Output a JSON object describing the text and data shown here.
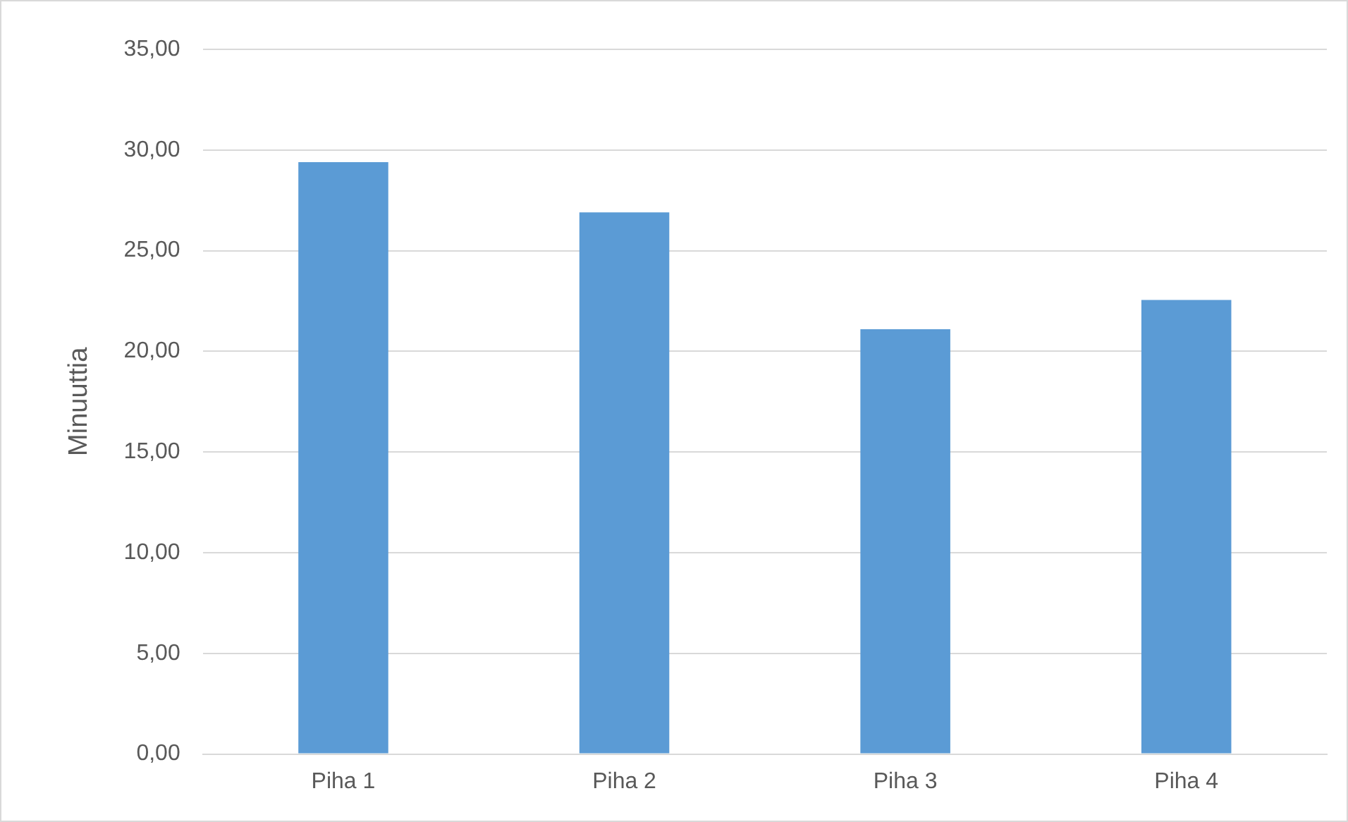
{
  "chart_data": {
    "type": "bar",
    "ylabel": "Minuuttia",
    "categories": [
      "Piha 1",
      "Piha 2",
      "Piha 3",
      "Piha 4"
    ],
    "values": [
      29.4,
      26.9,
      21.1,
      22.55
    ],
    "color": "#5b9bd5",
    "ylim": [
      0,
      35
    ],
    "yticks": [
      {
        "value": 0,
        "label": "0,00"
      },
      {
        "value": 5,
        "label": "5,00"
      },
      {
        "value": 10,
        "label": "10,00"
      },
      {
        "value": 15,
        "label": "15,00"
      },
      {
        "value": 20,
        "label": "20,00"
      },
      {
        "value": 25,
        "label": "25,00"
      },
      {
        "value": 30,
        "label": "30,00"
      },
      {
        "value": 35,
        "label": "35,00"
      }
    ],
    "grid": "y"
  }
}
